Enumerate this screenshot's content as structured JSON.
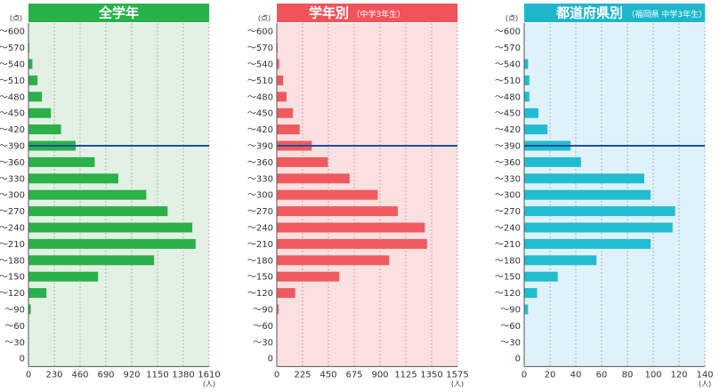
{
  "chart_data": [
    {
      "type": "bar",
      "orientation": "horizontal",
      "title": "全学年",
      "subtitle": "",
      "y_unit": "(点)",
      "x_unit": "(人)",
      "categories": [
        "～600",
        "～570",
        "～540",
        "～510",
        "～480",
        "～450",
        "～420",
        "～390",
        "～360",
        "～330",
        "～300",
        "～270",
        "～240",
        "～210",
        "～180",
        "～150",
        "～120",
        "～90",
        "～60",
        "～30",
        "0"
      ],
      "values": [
        0,
        8,
        35,
        80,
        120,
        200,
        290,
        420,
        590,
        800,
        1050,
        1240,
        1460,
        1490,
        1120,
        620,
        160,
        20,
        0,
        0,
        0
      ],
      "xlim": [
        0,
        1610
      ],
      "xticks": [
        "0",
        "230",
        "460",
        "690",
        "920",
        "1150",
        "1380",
        "1610"
      ],
      "reference_line": "～390",
      "colors": {
        "bar": "#2bb04a",
        "background": "#e3f1e4",
        "header": "#28b24b",
        "reference_line": "#1d4f9b"
      }
    },
    {
      "type": "bar",
      "orientation": "horizontal",
      "title": "学年別",
      "subtitle": "（中学3年生）",
      "y_unit": "(点)",
      "x_unit": "(人)",
      "categories": [
        "～600",
        "～570",
        "～540",
        "～510",
        "～480",
        "～450",
        "～420",
        "～390",
        "～360",
        "～330",
        "～300",
        "～270",
        "～240",
        "～210",
        "～180",
        "～150",
        "～120",
        "～90",
        "～60",
        "～30",
        "0"
      ],
      "values": [
        0,
        5,
        20,
        55,
        85,
        140,
        200,
        305,
        445,
        635,
        880,
        1055,
        1290,
        1310,
        980,
        545,
        160,
        15,
        0,
        0,
        0
      ],
      "xlim": [
        0,
        1575
      ],
      "xticks": [
        "0",
        "225",
        "450",
        "675",
        "900",
        "1125",
        "1350",
        "1575"
      ],
      "reference_line": "～390",
      "colors": {
        "bar": "#f05a5f",
        "background": "#fce0e0",
        "header": "#f0545a",
        "reference_line": "#1d4f9b"
      }
    },
    {
      "type": "bar",
      "orientation": "horizontal",
      "title": "都道府県別",
      "subtitle": "（福岡県 中学3年生）",
      "y_unit": "(点)",
      "x_unit": "(人)",
      "categories": [
        "～600",
        "～570",
        "～540",
        "～510",
        "～480",
        "～450",
        "～420",
        "～390",
        "～360",
        "～330",
        "～300",
        "～270",
        "～240",
        "～210",
        "～180",
        "～150",
        "～120",
        "～90",
        "～60",
        "～30",
        "0"
      ],
      "values": [
        0,
        0,
        3,
        4,
        4,
        11,
        18,
        36,
        44,
        93,
        98,
        117,
        115,
        98,
        56,
        26,
        10,
        3,
        0,
        0,
        0
      ],
      "xlim": [
        0,
        140
      ],
      "xticks": [
        "0",
        "20",
        "40",
        "60",
        "80",
        "100",
        "120",
        "140"
      ],
      "reference_line": "～390",
      "colors": {
        "bar": "#22bcd0",
        "background": "#dff2f9",
        "header": "#1fb6cc",
        "reference_line": "#1d4f9b"
      }
    }
  ]
}
